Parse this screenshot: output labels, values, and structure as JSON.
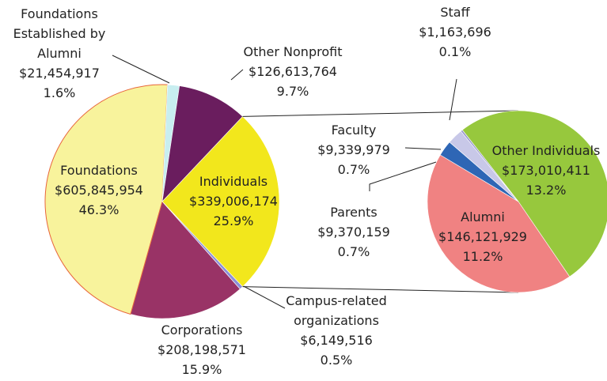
{
  "chart_data": {
    "type": "pie-of-pie",
    "categories": [
      "Individuals",
      "Campus-related organizations",
      "Corporations",
      "Foundations",
      "Foundations Established by Alumni",
      "Other Nonprofit"
    ],
    "values": [
      339006174,
      6149516,
      208198571,
      605845954,
      21454917,
      126613764
    ],
    "value_labels": [
      "$339,006,174",
      "$6,149,516",
      "$208,198,571",
      "$605,845,954",
      "$21,454,917",
      "$126,613,764"
    ],
    "percents": [
      25.9,
      0.5,
      15.9,
      46.3,
      1.6,
      9.7
    ],
    "percent_labels": [
      "25.9%",
      "0.5%",
      "15.9%",
      "46.3%",
      "1.6%",
      "9.7%"
    ],
    "colors": [
      "#f2e71c",
      "#8c8fd8",
      "#993366",
      "#f8f39c",
      "#c8eef0",
      "#6a1d5e"
    ],
    "secondary": {
      "categories": [
        "Other Individuals",
        "Alumni",
        "Parents",
        "Faculty",
        "Staff"
      ],
      "values": [
        173010411,
        146121929,
        9370159,
        9339979,
        1163696
      ],
      "value_labels": [
        "$173,010,411",
        "$146,121,929",
        "$9,370,159",
        "$9,339,979",
        "$1,163,696"
      ],
      "percents": [
        13.2,
        11.2,
        0.7,
        0.7,
        0.1
      ],
      "percent_labels": [
        "13.2%",
        "11.2%",
        "0.7%",
        "0.7%",
        "0.1%"
      ],
      "colors": [
        "#97c83d",
        "#f08282",
        "#2e66b5",
        "#c8c8e8",
        "#9999cc"
      ]
    }
  }
}
